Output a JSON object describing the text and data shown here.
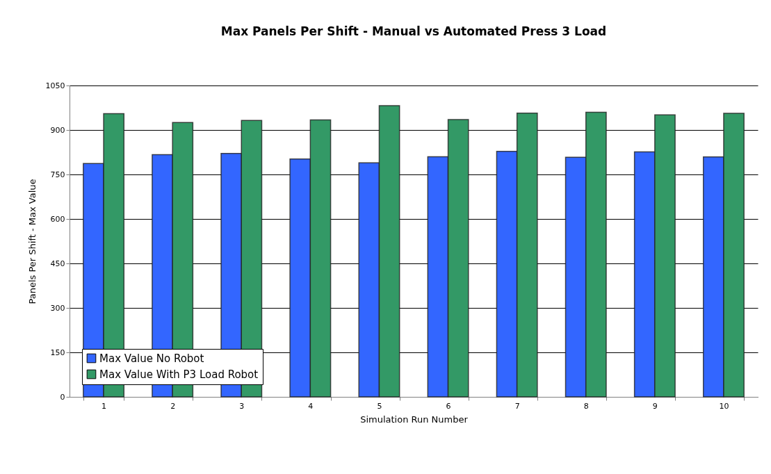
{
  "chart_data": {
    "type": "bar",
    "title": "Max Panels Per Shift - Manual vs Automated Press 3 Load",
    "xlabel": "Simulation Run Number",
    "ylabel": "Panels Per Shift - Max Value",
    "categories": [
      "1",
      "2",
      "3",
      "4",
      "5",
      "6",
      "7",
      "8",
      "9",
      "10"
    ],
    "series": [
      {
        "name": "Max Value No Robot",
        "color": "#3366ff",
        "values": [
          787,
          817,
          821,
          802,
          789,
          810,
          828,
          808,
          826,
          809
        ]
      },
      {
        "name": "Max Value With P3 Load Robot",
        "color": "#339966",
        "values": [
          955,
          925,
          932,
          934,
          982,
          935,
          957,
          960,
          951,
          956
        ]
      }
    ],
    "ylim": [
      0,
      1050
    ],
    "yticks": [
      0,
      150,
      300,
      450,
      600,
      750,
      900,
      1050
    ],
    "grid": "y",
    "legend": "bottom left"
  }
}
